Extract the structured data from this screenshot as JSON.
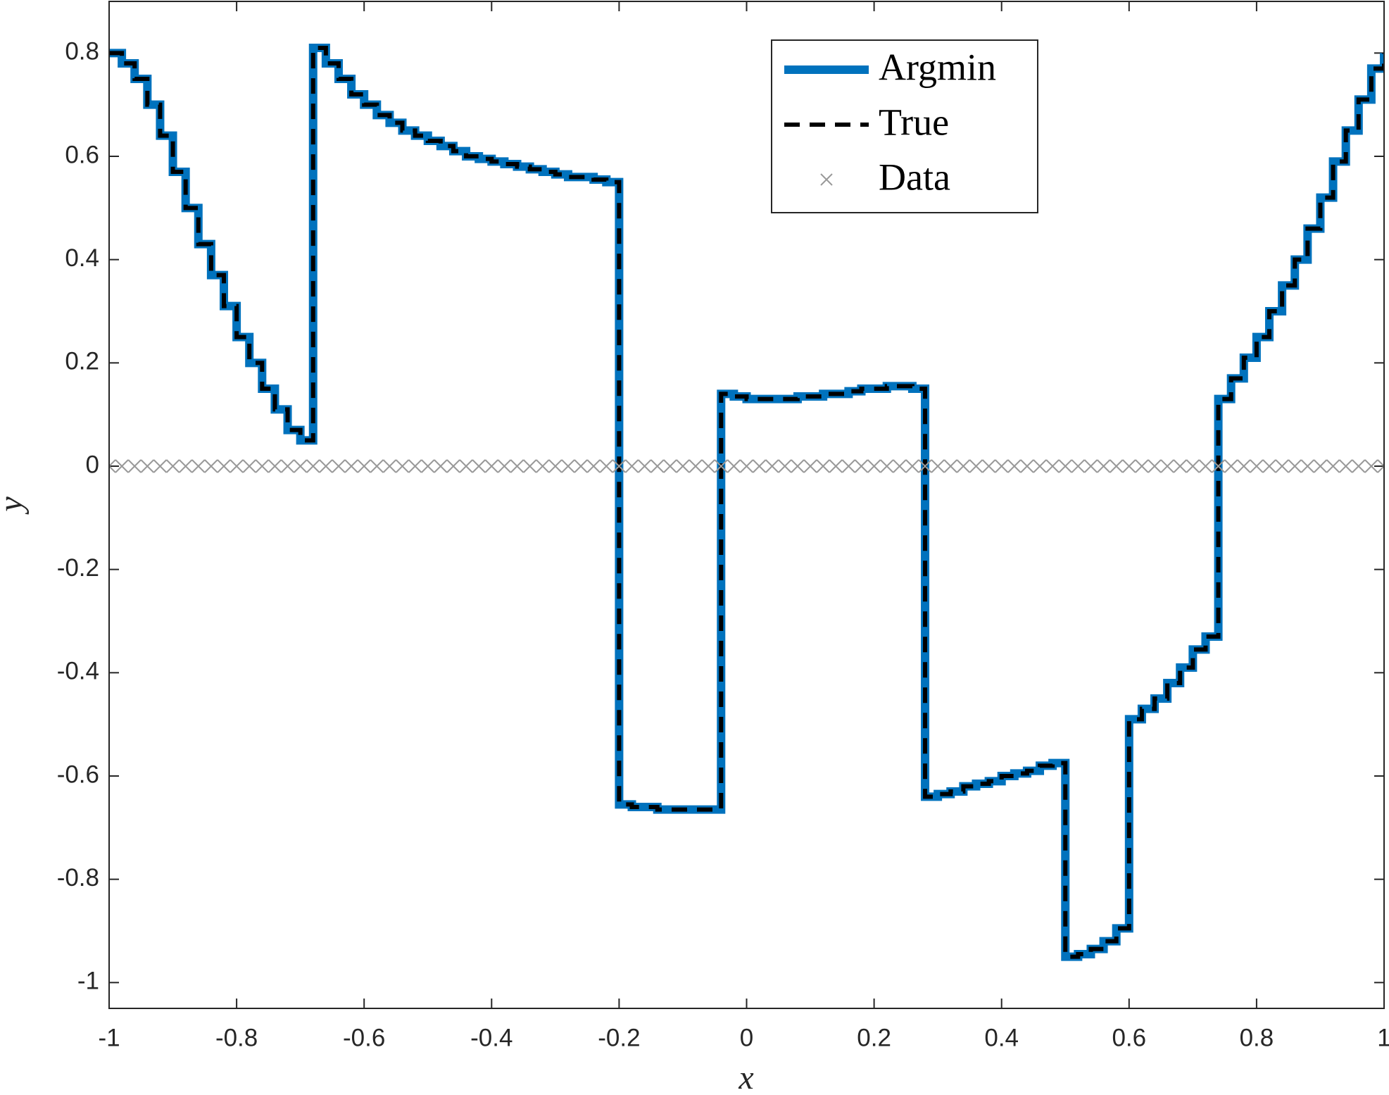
{
  "chart_data": {
    "type": "step",
    "xlabel": "x",
    "ylabel": "y",
    "xlim": [
      -1,
      1
    ],
    "ylim": [
      -1.05,
      0.9
    ],
    "xticks": [
      -1,
      -0.8,
      -0.6,
      -0.4,
      -0.2,
      0,
      0.2,
      0.4,
      0.6,
      0.8,
      1
    ],
    "yticks": [
      -1,
      -0.8,
      -0.6,
      -0.4,
      -0.2,
      0,
      0.2,
      0.4,
      0.6,
      0.8
    ],
    "legend": "northeast",
    "x": [
      -1,
      -0.98,
      -0.96,
      -0.94,
      -0.92,
      -0.9,
      -0.88,
      -0.86,
      -0.84,
      -0.82,
      -0.8,
      -0.78,
      -0.76,
      -0.74,
      -0.72,
      -0.7,
      -0.68,
      -0.66,
      -0.64,
      -0.62,
      -0.6,
      -0.58,
      -0.56,
      -0.54,
      -0.52,
      -0.5,
      -0.48,
      -0.46,
      -0.44,
      -0.42,
      -0.4,
      -0.38,
      -0.36,
      -0.34,
      -0.32,
      -0.3,
      -0.28,
      -0.26,
      -0.24,
      -0.22,
      -0.2,
      -0.18,
      -0.16,
      -0.14,
      -0.12,
      -0.1,
      -0.08,
      -0.06,
      -0.04,
      -0.02,
      0,
      0.02,
      0.04,
      0.06,
      0.08,
      0.1,
      0.12,
      0.14,
      0.16,
      0.18,
      0.2,
      0.22,
      0.24,
      0.26,
      0.28,
      0.3,
      0.32,
      0.34,
      0.36,
      0.38,
      0.4,
      0.42,
      0.44,
      0.46,
      0.48,
      0.5,
      0.52,
      0.54,
      0.56,
      0.58,
      0.6,
      0.62,
      0.64,
      0.66,
      0.68,
      0.7,
      0.72,
      0.74,
      0.76,
      0.78,
      0.8,
      0.82,
      0.84,
      0.86,
      0.88,
      0.9,
      0.92,
      0.94,
      0.96,
      0.98,
      1
    ],
    "series": [
      {
        "name": "Argmin",
        "color": "#0072bd",
        "style": "solid",
        "values": [
          0.8,
          0.78,
          0.75,
          0.7,
          0.64,
          0.57,
          0.5,
          0.43,
          0.37,
          0.31,
          0.25,
          0.2,
          0.15,
          0.11,
          0.07,
          0.05,
          0.81,
          0.78,
          0.75,
          0.72,
          0.7,
          0.68,
          0.665,
          0.65,
          0.64,
          0.63,
          0.62,
          0.61,
          0.6,
          0.595,
          0.59,
          0.585,
          0.58,
          0.575,
          0.57,
          0.565,
          0.56,
          0.56,
          0.555,
          0.55,
          -0.655,
          -0.66,
          -0.66,
          -0.665,
          -0.665,
          -0.665,
          -0.665,
          -0.665,
          0.14,
          0.135,
          0.13,
          0.13,
          0.13,
          0.13,
          0.135,
          0.135,
          0.14,
          0.14,
          0.145,
          0.15,
          0.15,
          0.155,
          0.155,
          0.15,
          -0.64,
          -0.635,
          -0.63,
          -0.62,
          -0.615,
          -0.61,
          -0.6,
          -0.595,
          -0.59,
          -0.58,
          -0.575,
          -0.95,
          -0.945,
          -0.935,
          -0.92,
          -0.895,
          -0.49,
          -0.47,
          -0.45,
          -0.42,
          -0.39,
          -0.355,
          -0.33,
          0.13,
          0.17,
          0.21,
          0.25,
          0.3,
          0.35,
          0.4,
          0.46,
          0.52,
          0.59,
          0.65,
          0.71,
          0.77,
          0.8
        ]
      },
      {
        "name": "True",
        "color": "#000000",
        "style": "dashed",
        "values": [
          0.8,
          0.78,
          0.75,
          0.7,
          0.64,
          0.57,
          0.5,
          0.43,
          0.37,
          0.31,
          0.25,
          0.2,
          0.15,
          0.11,
          0.07,
          0.05,
          0.81,
          0.78,
          0.75,
          0.72,
          0.7,
          0.68,
          0.665,
          0.65,
          0.64,
          0.63,
          0.62,
          0.61,
          0.6,
          0.595,
          0.59,
          0.585,
          0.58,
          0.575,
          0.57,
          0.565,
          0.56,
          0.56,
          0.555,
          0.55,
          -0.655,
          -0.66,
          -0.66,
          -0.665,
          -0.665,
          -0.665,
          -0.665,
          -0.665,
          0.14,
          0.135,
          0.13,
          0.13,
          0.13,
          0.13,
          0.135,
          0.135,
          0.14,
          0.14,
          0.145,
          0.15,
          0.15,
          0.155,
          0.155,
          0.15,
          -0.64,
          -0.635,
          -0.63,
          -0.62,
          -0.615,
          -0.61,
          -0.6,
          -0.595,
          -0.59,
          -0.58,
          -0.575,
          -0.95,
          -0.945,
          -0.935,
          -0.92,
          -0.895,
          -0.49,
          -0.47,
          -0.45,
          -0.42,
          -0.39,
          -0.355,
          -0.33,
          0.13,
          0.17,
          0.21,
          0.25,
          0.3,
          0.35,
          0.4,
          0.46,
          0.52,
          0.59,
          0.65,
          0.71,
          0.77,
          0.8
        ]
      },
      {
        "name": "Data",
        "color": "#999999",
        "style": "marker",
        "values": [
          0,
          0,
          0,
          0,
          0,
          0,
          0,
          0,
          0,
          0,
          0,
          0,
          0,
          0,
          0,
          0,
          0,
          0,
          0,
          0,
          0,
          0,
          0,
          0,
          0,
          0,
          0,
          0,
          0,
          0,
          0,
          0,
          0,
          0,
          0,
          0,
          0,
          0,
          0,
          0,
          0,
          0,
          0,
          0,
          0,
          0,
          0,
          0,
          0,
          0,
          0,
          0,
          0,
          0,
          0,
          0,
          0,
          0,
          0,
          0,
          0,
          0,
          0,
          0,
          0,
          0,
          0,
          0,
          0,
          0,
          0,
          0,
          0,
          0,
          0,
          0,
          0,
          0,
          0,
          0,
          0,
          0,
          0,
          0,
          0,
          0,
          0,
          0,
          0,
          0,
          0,
          0,
          0,
          0,
          0,
          0,
          0,
          0,
          0,
          0,
          0
        ]
      }
    ]
  }
}
